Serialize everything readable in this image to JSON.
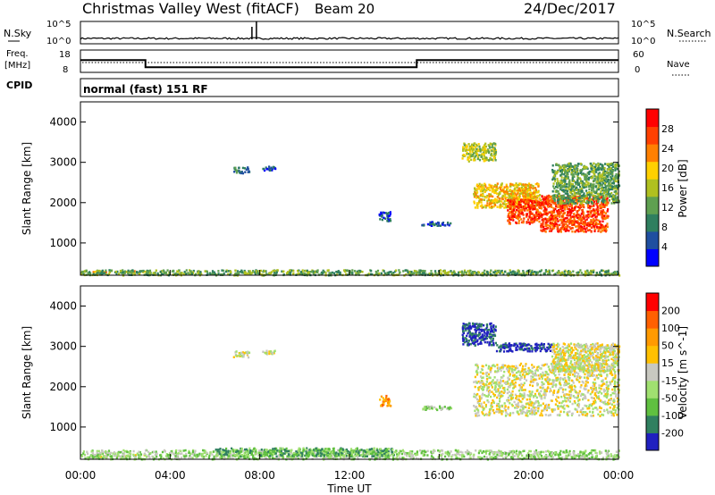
{
  "header": {
    "title": "Christmas Valley West (fitACF)",
    "beam": "Beam 20",
    "date": "24/Dec/2017"
  },
  "top_panels": {
    "nsky_label": "N.Sky",
    "nsky_ticks": [
      "10^5",
      "10^0"
    ],
    "nsearch_label": "N.Search",
    "nsearch_ticks": [
      "10^5",
      "10^0"
    ],
    "freq_label": "Freq.",
    "freq_unit": "[MHz]",
    "freq_ticks": [
      "18",
      "8"
    ],
    "nave_label": "Nave",
    "nave_ticks": [
      "60",
      "0"
    ],
    "cpid_label": "CPID",
    "cpid_text": "normal (fast) 151 RF",
    "freq_step_hours": [
      0,
      2.9,
      15,
      24
    ],
    "freq_step_levels": [
      13.5,
      10.3,
      13.5
    ]
  },
  "colors": {
    "power_scale": [
      "#0000ff",
      "#1f4fa0",
      "#2f7f5f",
      "#5fa050",
      "#b0c020",
      "#ffd000",
      "#ff8000",
      "#ff4000",
      "#ff0000"
    ],
    "velocity_scale": [
      "#ff0000",
      "#ff6000",
      "#ff9a00",
      "#ffc000",
      "#c8c8c0",
      "#a0e070",
      "#60c040",
      "#308060",
      "#2020c0"
    ]
  },
  "chart_data": [
    {
      "type": "heatmap",
      "panel": "power",
      "ylabel": "Slant Range [km]",
      "yticks": [
        "4000",
        "3000",
        "2000",
        "1000"
      ],
      "ylim": [
        200,
        4500
      ],
      "xlim": [
        0,
        24
      ],
      "colorbar_label": "Power [dB]",
      "colorbar_ticks": [
        "28",
        "24",
        "20",
        "16",
        "12",
        "8",
        "4"
      ],
      "scatter_regions": [
        {
          "x": [
            0.5,
            3.0
          ],
          "y": [
            300,
            330
          ],
          "level": 6
        },
        {
          "x": [
            0.0,
            24.0
          ],
          "y": [
            220,
            350
          ],
          "level": 3
        },
        {
          "x": [
            6.8,
            7.5
          ],
          "y": [
            2750,
            2900
          ],
          "level": 2
        },
        {
          "x": [
            8.1,
            8.7
          ],
          "y": [
            2820,
            2920
          ],
          "level": 1
        },
        {
          "x": [
            13.3,
            13.8
          ],
          "y": [
            1550,
            1800
          ],
          "level": 1
        },
        {
          "x": [
            15.2,
            16.5
          ],
          "y": [
            1450,
            1550
          ],
          "level": 1
        },
        {
          "x": [
            17.0,
            18.5
          ],
          "y": [
            3050,
            3500
          ],
          "level": 4
        },
        {
          "x": [
            17.5,
            20.5
          ],
          "y": [
            1900,
            2500
          ],
          "level": 5
        },
        {
          "x": [
            19.0,
            20.5
          ],
          "y": [
            1500,
            2100
          ],
          "level": 7
        },
        {
          "x": [
            20.5,
            23.5
          ],
          "y": [
            1300,
            2200
          ],
          "level": 7
        },
        {
          "x": [
            21.0,
            24.0
          ],
          "y": [
            2000,
            3000
          ],
          "level": 3
        }
      ]
    },
    {
      "type": "heatmap",
      "panel": "velocity",
      "ylabel": "Slant Range [km]",
      "yticks": [
        "4000",
        "3000",
        "2000",
        "1000"
      ],
      "ylim": [
        200,
        4500
      ],
      "xlim": [
        0,
        24
      ],
      "xlabel": "Time UT",
      "xticks": [
        "00:00",
        "04:00",
        "08:00",
        "12:00",
        "16:00",
        "20:00",
        "00:00"
      ],
      "colorbar_label": "Velocity [m s^-1]",
      "colorbar_ticks": [
        "200",
        "100",
        "50",
        "15",
        "-15",
        "-50",
        "-100",
        "-200"
      ],
      "scatter_regions": [
        {
          "x": [
            0.5,
            3.0
          ],
          "y": [
            280,
            330
          ],
          "level": 4
        },
        {
          "x": [
            0.0,
            24.0
          ],
          "y": [
            220,
            450
          ],
          "level": 3
        },
        {
          "x": [
            6.0,
            14.0
          ],
          "y": [
            300,
            500
          ],
          "level": 2
        },
        {
          "x": [
            6.8,
            7.5
          ],
          "y": [
            2750,
            2900
          ],
          "level": 4
        },
        {
          "x": [
            8.1,
            8.7
          ],
          "y": [
            2820,
            2920
          ],
          "level": 4
        },
        {
          "x": [
            13.3,
            13.8
          ],
          "y": [
            1550,
            1800
          ],
          "level": 6
        },
        {
          "x": [
            15.2,
            16.5
          ],
          "y": [
            1450,
            1550
          ],
          "level": 3
        },
        {
          "x": [
            17.0,
            18.5
          ],
          "y": [
            3050,
            3600
          ],
          "level": 0
        },
        {
          "x": [
            18.5,
            21.0
          ],
          "y": [
            2900,
            3100
          ],
          "level": 0
        },
        {
          "x": [
            17.5,
            24.0
          ],
          "y": [
            1300,
            2600
          ],
          "level": 4
        },
        {
          "x": [
            21.0,
            24.0
          ],
          "y": [
            2400,
            3100
          ],
          "level": 4
        }
      ]
    }
  ]
}
